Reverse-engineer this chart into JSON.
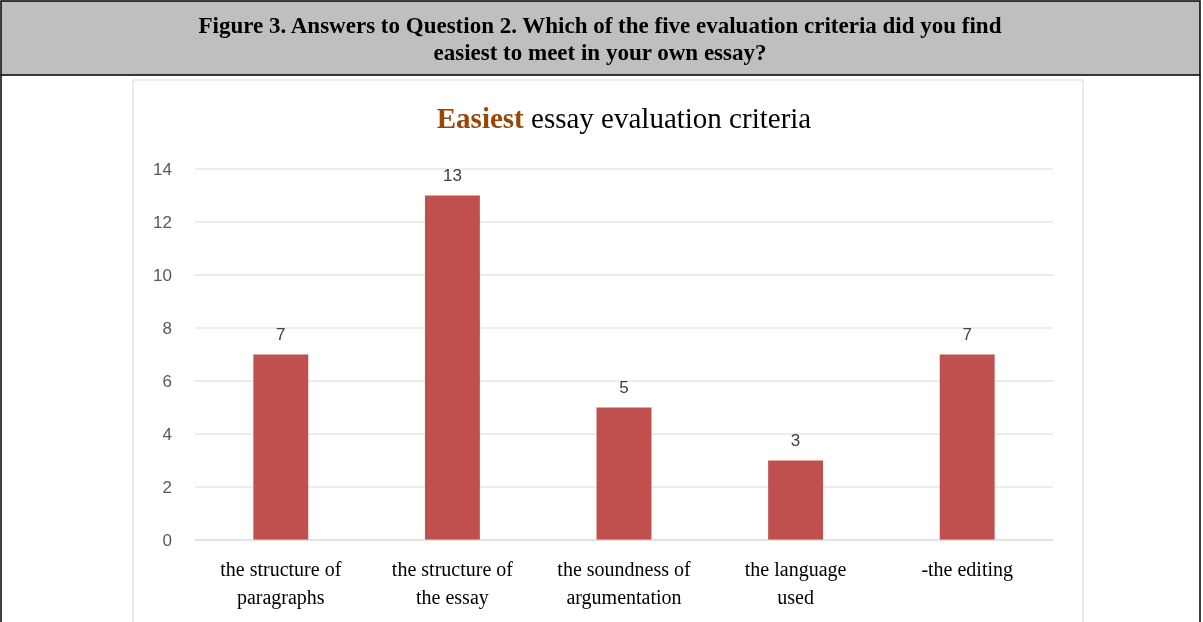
{
  "chart_data": {
    "type": "bar",
    "title": "Easiest essay evaluation criteria",
    "annotations": [
      "Figure 3. Answers to Question 2. Which of the five evaluation criteria did you find easiest to meet in your own essay?"
    ],
    "categories": [
      "the structure of paragraphs",
      "the structure of the essay",
      "the soundness of argumentation",
      "the language used",
      "-the editing"
    ],
    "values": [
      7,
      13,
      5,
      3,
      7
    ],
    "color": "#c0504d",
    "ylim": [
      0,
      14
    ],
    "yticks": [
      0,
      2,
      4,
      6,
      8,
      10,
      12,
      14
    ],
    "grid": "y",
    "data_labels": true
  }
}
